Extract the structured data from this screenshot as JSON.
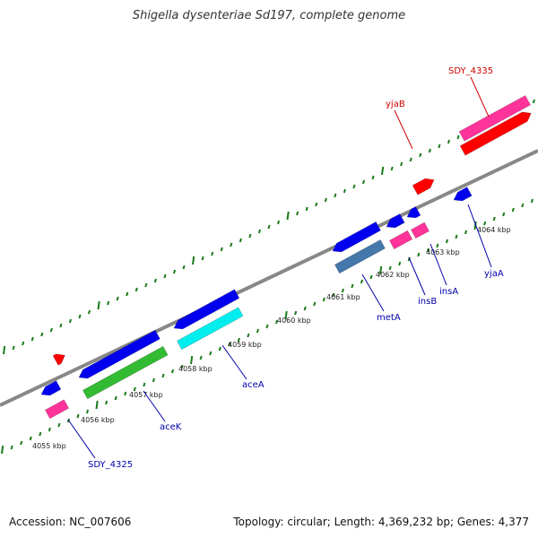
{
  "title": "Shigella dysenteriae Sd197, complete genome",
  "footer": {
    "accession": "Accession: NC_007606",
    "summary": "Topology: circular; Length: 4,369,232 bp; Genes: 4,377"
  },
  "scale_labels": [
    "4055 kbp",
    "4056 kbp",
    "4057 kbp",
    "4058 kbp",
    "4059 kbp",
    "4060 kbp",
    "4061 kbp",
    "4062 kbp",
    "4063 kbp",
    "4064 kbp"
  ],
  "gene_labels": [
    {
      "name": "SDY_4335",
      "color": "#cc0000"
    },
    {
      "name": "yjaB",
      "color": "#cc0000"
    },
    {
      "name": "yjaA",
      "color": "#0000aa"
    },
    {
      "name": "insA",
      "color": "#0000aa"
    },
    {
      "name": "insB",
      "color": "#0000aa"
    },
    {
      "name": "metA",
      "color": "#0000aa"
    },
    {
      "name": "aceA",
      "color": "#0000aa"
    },
    {
      "name": "aceK",
      "color": "#0000aa"
    },
    {
      "name": "SDY_4325",
      "color": "#0000aa"
    }
  ],
  "colors": {
    "backbone": "#888888",
    "ticks": "#1a7a1a",
    "red": "#ff0000",
    "blue": "#0000ee",
    "pink": "#ff3399",
    "green": "#33bb33",
    "cyan": "#00eeee",
    "steelblue": "#4477aa"
  }
}
